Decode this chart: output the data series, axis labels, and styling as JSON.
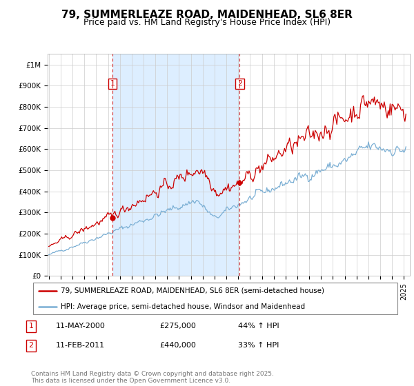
{
  "title": "79, SUMMERLEAZE ROAD, MAIDENHEAD, SL6 8ER",
  "subtitle": "Price paid vs. HM Land Registry's House Price Index (HPI)",
  "legend_line1": "79, SUMMERLEAZE ROAD, MAIDENHEAD, SL6 8ER (semi-detached house)",
  "legend_line2": "HPI: Average price, semi-detached house, Windsor and Maidenhead",
  "note1_num": "1",
  "note1_date": "11-MAY-2000",
  "note1_price": "£275,000",
  "note1_hpi": "44% ↑ HPI",
  "note2_num": "2",
  "note2_date": "11-FEB-2011",
  "note2_price": "£440,000",
  "note2_hpi": "33% ↑ HPI",
  "footnote": "Contains HM Land Registry data © Crown copyright and database right 2025.\nThis data is licensed under the Open Government Licence v3.0.",
  "red_line_color": "#cc0000",
  "blue_line_color": "#7bafd4",
  "shade_color": "#ddeeff",
  "marker1_x": 2000.37,
  "marker1_y": 275000,
  "marker2_x": 2011.12,
  "marker2_y": 440000,
  "vline1_x": 2000.37,
  "vline2_x": 2011.12,
  "ylim": [
    0,
    1050000
  ],
  "xlim_start": 1994.9,
  "xlim_end": 2025.5,
  "background_color": "#ffffff",
  "grid_color": "#cccccc"
}
